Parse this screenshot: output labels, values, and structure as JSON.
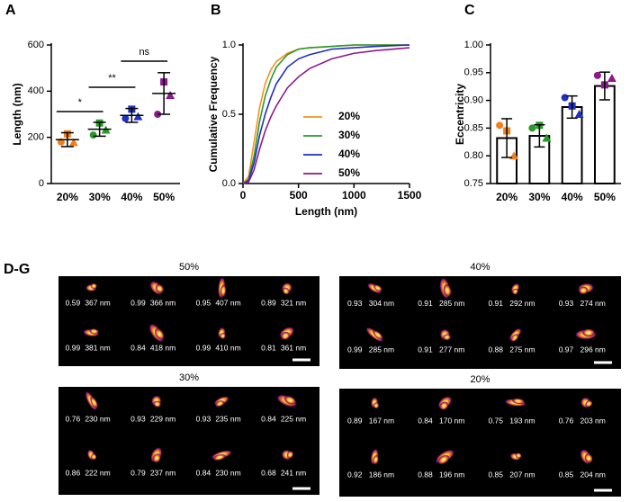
{
  "chart_data": [
    {
      "type": "dot",
      "label": "A",
      "ylabel": "Length (nm)",
      "categories": [
        "20%",
        "30%",
        "40%",
        "50%"
      ],
      "values": [
        190,
        235,
        295,
        390
      ],
      "errors": [
        30,
        30,
        30,
        90
      ],
      "points": [
        [
          180,
          215,
          178
        ],
        [
          210,
          262,
          232
        ],
        [
          282,
          322,
          290
        ],
        [
          300,
          440,
          382
        ]
      ],
      "colors": [
        "#f07f1e",
        "#2a9a2a",
        "#1f2fbf",
        "#8b1a8b"
      ],
      "ylim": [
        0,
        600
      ],
      "yticks": [
        0,
        200,
        400,
        600
      ],
      "annotations": [
        "*",
        "**",
        "ns"
      ]
    },
    {
      "type": "line",
      "label": "B",
      "ylabel": "Cumulative Frequency",
      "xlabel": "Length (nm)",
      "x": [
        0,
        50,
        100,
        150,
        200,
        250,
        300,
        400,
        500,
        600,
        800,
        1000,
        1200,
        1500
      ],
      "series": [
        {
          "name": "20%",
          "color": "#f5921e",
          "values": [
            0,
            0.05,
            0.3,
            0.55,
            0.72,
            0.82,
            0.88,
            0.94,
            0.97,
            0.98,
            0.99,
            1,
            1,
            1
          ]
        },
        {
          "name": "30%",
          "color": "#2a9a2a",
          "values": [
            0,
            0.03,
            0.2,
            0.45,
            0.63,
            0.75,
            0.84,
            0.93,
            0.97,
            0.98,
            0.99,
            1,
            1,
            1
          ]
        },
        {
          "name": "40%",
          "color": "#1f2fbf",
          "values": [
            0,
            0.02,
            0.15,
            0.35,
            0.5,
            0.62,
            0.72,
            0.84,
            0.9,
            0.93,
            0.97,
            0.98,
            0.99,
            1
          ]
        },
        {
          "name": "50%",
          "color": "#8b1a8b",
          "values": [
            0,
            0.01,
            0.1,
            0.25,
            0.38,
            0.48,
            0.56,
            0.69,
            0.77,
            0.83,
            0.9,
            0.94,
            0.96,
            0.98
          ]
        }
      ],
      "xlim": [
        0,
        1500
      ],
      "xticks": [
        0,
        500,
        1000,
        1500
      ],
      "ylim": [
        0,
        1
      ],
      "yticks": [
        {
          "value": 0,
          "label": "0.0"
        },
        0.5,
        {
          "value": 1,
          "label": "1.0"
        }
      ]
    },
    {
      "type": "bar",
      "label": "C",
      "ylabel": "Eccentricity",
      "categories": [
        "20%",
        "30%",
        "40%",
        "50%"
      ],
      "values": [
        0.832,
        0.836,
        0.888,
        0.926
      ],
      "errors": [
        0.035,
        0.02,
        0.02,
        0.025
      ],
      "points": [
        [
          0.855,
          0.845,
          0.8
        ],
        [
          0.85,
          0.855,
          0.832
        ],
        [
          0.905,
          0.89,
          0.875
        ],
        [
          0.945,
          0.928,
          0.94
        ]
      ],
      "colors": [
        "#f07f1e",
        "#2a9a2a",
        "#1f2fbf",
        "#8b1a8b"
      ],
      "ylim": [
        0.75,
        1
      ],
      "yticks": [
        0.75,
        {
          "value": 0.8,
          "label": "0.80"
        },
        0.85,
        {
          "value": 0.9,
          "label": "0.90"
        },
        0.95,
        {
          "value": 1,
          "label": "1.00"
        }
      ]
    }
  ],
  "image_panels": {
    "label": "D-G",
    "panels": [
      {
        "title": "50%",
        "cells": [
          {
            "eccentricity": "0.59",
            "length": "367 nm"
          },
          {
            "eccentricity": "0.99",
            "length": "366 nm"
          },
          {
            "eccentricity": "0.95",
            "length": "407 nm"
          },
          {
            "eccentricity": "0.89",
            "length": "321 nm"
          },
          {
            "eccentricity": "0.99",
            "length": "381 nm"
          },
          {
            "eccentricity": "0.84",
            "length": "418 nm"
          },
          {
            "eccentricity": "0.99",
            "length": "410 nm"
          },
          {
            "eccentricity": "0.81",
            "length": "361 nm"
          }
        ]
      },
      {
        "title": "40%",
        "cells": [
          {
            "eccentricity": "0.93",
            "length": "304 nm"
          },
          {
            "eccentricity": "0.91",
            "length": "285 nm"
          },
          {
            "eccentricity": "0.91",
            "length": "292 nm"
          },
          {
            "eccentricity": "0.93",
            "length": "274 nm"
          },
          {
            "eccentricity": "0.99",
            "length": "285 nm"
          },
          {
            "eccentricity": "0.91",
            "length": "277 nm"
          },
          {
            "eccentricity": "0.88",
            "length": "275 nm"
          },
          {
            "eccentricity": "0.97",
            "length": "296 nm"
          }
        ]
      },
      {
        "title": "30%",
        "cells": [
          {
            "eccentricity": "0.76",
            "length": "230 nm"
          },
          {
            "eccentricity": "0.93",
            "length": "229 nm"
          },
          {
            "eccentricity": "0.93",
            "length": "235 nm"
          },
          {
            "eccentricity": "0.84",
            "length": "225 nm"
          },
          {
            "eccentricity": "0.86",
            "length": "222 nm"
          },
          {
            "eccentricity": "0.79",
            "length": "237 nm"
          },
          {
            "eccentricity": "0.84",
            "length": "230 nm"
          },
          {
            "eccentricity": "0.68",
            "length": "241 nm"
          }
        ]
      },
      {
        "title": "20%",
        "cells": [
          {
            "eccentricity": "0.89",
            "length": "167 nm"
          },
          {
            "eccentricity": "0.84",
            "length": "170 nm"
          },
          {
            "eccentricity": "0.75",
            "length": "193 nm"
          },
          {
            "eccentricity": "0.76",
            "length": "203 nm"
          },
          {
            "eccentricity": "0.92",
            "length": "186 nm"
          },
          {
            "eccentricity": "0.88",
            "length": "196 nm"
          },
          {
            "eccentricity": "0.85",
            "length": "207 nm"
          },
          {
            "eccentricity": "0.85",
            "length": "204 nm"
          }
        ]
      }
    ]
  }
}
